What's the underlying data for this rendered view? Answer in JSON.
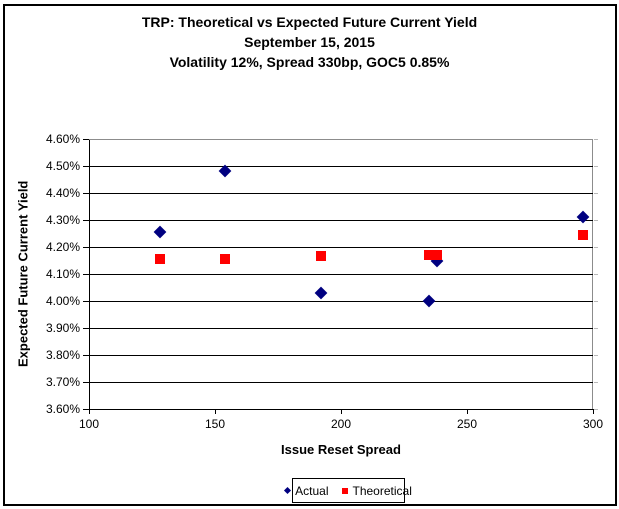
{
  "title": {
    "line1": "TRP: Theoretical vs Expected Future Current Yield",
    "line2": "September 15, 2015",
    "line3": "Volatility 12%, Spread 330bp, GOC5 0.85%"
  },
  "colors": {
    "actual": "#000080",
    "theoretical": "#ff0000",
    "gridline": "#000000",
    "plot_frame_gray": "#8c8c8c",
    "chart_border": "#000000"
  },
  "chart_data": {
    "type": "scatter",
    "title": "TRP: Theoretical vs Expected Future Current Yield",
    "subtitle1": "September 15, 2015",
    "subtitle2": "Volatility 12%, Spread 330bp, GOC5 0.85%",
    "xlabel": "Issue Reset Spread",
    "ylabel": "Expected Future Current Yield",
    "xlim": [
      100,
      300
    ],
    "ylim": [
      3.6,
      4.6
    ],
    "x_ticks": [
      100,
      150,
      200,
      250,
      300
    ],
    "y_ticks": [
      4.6,
      4.5,
      4.4,
      4.3,
      4.2,
      4.1,
      4.0,
      3.9,
      3.8,
      3.7,
      3.6
    ],
    "y_tick_labels": [
      "4.60%",
      "4.50%",
      "4.40%",
      "4.30%",
      "4.20%",
      "4.10%",
      "4.00%",
      "3.90%",
      "3.80%",
      "3.70%",
      "3.60%"
    ],
    "grid": true,
    "legend_position": "bottom-center",
    "series": [
      {
        "name": "Actual",
        "marker": "diamond",
        "color": "#000080",
        "points": [
          [
            128,
            4.255
          ],
          [
            154,
            4.48
          ],
          [
            192,
            4.03
          ],
          [
            235,
            4.0
          ],
          [
            238,
            4.15
          ],
          [
            296,
            4.31
          ]
        ]
      },
      {
        "name": "Theoretical",
        "marker": "square",
        "color": "#ff0000",
        "points": [
          [
            128,
            4.155
          ],
          [
            154,
            4.155
          ],
          [
            192,
            4.165
          ],
          [
            235,
            4.17
          ],
          [
            238,
            4.17
          ],
          [
            296,
            4.245
          ]
        ]
      }
    ]
  },
  "legend": {
    "items": [
      {
        "label": "Actual"
      },
      {
        "label": "Theoretical"
      }
    ]
  }
}
